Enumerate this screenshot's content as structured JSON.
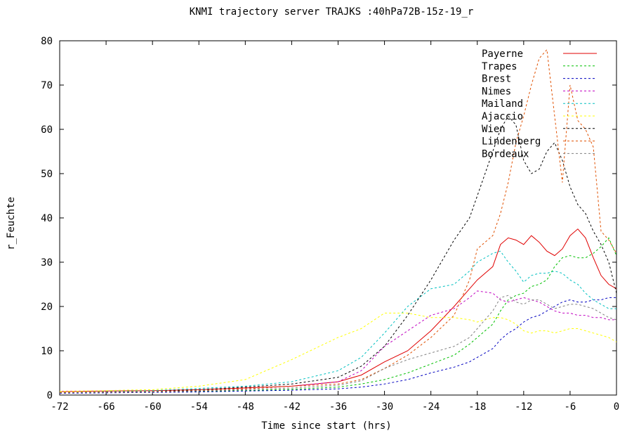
{
  "chart_data": {
    "type": "line",
    "title": "KNMI trajectory server TRAJKS :40hPa72B-15z-19_r",
    "xlabel": "Time since start (hrs)",
    "ylabel": "r_Feuchte",
    "xlim": [
      -72,
      0
    ],
    "ylim": [
      0,
      80
    ],
    "x_ticks": [
      -72,
      -66,
      -60,
      -54,
      -48,
      -42,
      -36,
      -30,
      -24,
      -18,
      -12,
      -6,
      0
    ],
    "y_ticks": [
      0,
      10,
      20,
      30,
      40,
      50,
      60,
      70,
      80
    ],
    "grid": false,
    "legend_position": "top-right",
    "x": [
      -72,
      -66,
      -60,
      -54,
      -48,
      -42,
      -36,
      -33,
      -30,
      -27,
      -24,
      -21,
      -19,
      -18,
      -16,
      -15,
      -14,
      -13,
      -12,
      -11,
      -10,
      -9,
      -8,
      -7,
      -6,
      -5,
      -4,
      -3,
      -2,
      -1,
      0
    ],
    "series": [
      {
        "name": "Payerne",
        "color": "#e00000",
        "dash": "",
        "values": [
          0.8,
          0.9,
          1,
          1.2,
          1.6,
          2,
          3,
          4.5,
          7.5,
          10,
          14.5,
          20,
          24,
          26,
          29,
          34,
          35.5,
          35,
          34,
          36,
          34.5,
          32.5,
          31.5,
          33,
          36,
          37.5,
          35.5,
          31,
          27,
          25,
          24
        ]
      },
      {
        "name": "Trapes",
        "color": "#00c000",
        "dash": "3,3",
        "values": [
          0.5,
          0.6,
          0.7,
          0.8,
          1,
          1.3,
          1.8,
          2.5,
          3.5,
          5,
          7,
          9,
          11.5,
          13,
          16,
          19,
          21.5,
          22.5,
          23,
          24.5,
          25,
          26,
          29,
          31,
          31.5,
          31,
          31,
          32,
          33.5,
          35.5,
          31.5
        ]
      },
      {
        "name": "Brest",
        "color": "#0000c0",
        "dash": "3,3",
        "values": [
          0.4,
          0.5,
          0.6,
          0.7,
          0.9,
          1.1,
          1.4,
          1.8,
          2.5,
          3.5,
          5,
          6.3,
          7.5,
          8.5,
          10.5,
          12.5,
          14,
          15,
          16.5,
          17.5,
          18,
          19,
          20,
          21,
          21.5,
          21,
          21,
          21.5,
          21.5,
          22,
          22
        ]
      },
      {
        "name": "Nimes",
        "color": "#c000c0",
        "dash": "3,3",
        "values": [
          0.6,
          0.7,
          0.8,
          1,
          1.4,
          2,
          3,
          5.5,
          11,
          14.5,
          18,
          19.5,
          22,
          23.5,
          23,
          21.5,
          21,
          21.5,
          22,
          21.5,
          21,
          20,
          19,
          18.5,
          18.5,
          18,
          18,
          17.5,
          17.5,
          17,
          17
        ]
      },
      {
        "name": "Mailand",
        "color": "#00c0c0",
        "dash": "3,3",
        "values": [
          0.6,
          0.8,
          1,
          1.5,
          2,
          3,
          5.5,
          8.5,
          14,
          20,
          24,
          25,
          28,
          30,
          32,
          32.5,
          30,
          28,
          25.5,
          27,
          27.5,
          27.5,
          28,
          27.5,
          26,
          25,
          23,
          21.5,
          20.5,
          19.5,
          19.5
        ]
      },
      {
        "name": "Ajaccio",
        "color": "#ffff00",
        "dash": "3,3",
        "values": [
          0.8,
          1,
          1.2,
          2,
          3.5,
          8,
          13,
          15,
          18.5,
          18.5,
          17.5,
          17.5,
          17,
          16.5,
          17.5,
          17.5,
          17,
          16,
          14.5,
          14,
          14.5,
          14.5,
          14,
          14.5,
          15,
          15,
          14.5,
          14,
          13.5,
          13,
          12
        ]
      },
      {
        "name": "Wien",
        "color": "#000000",
        "dash": "3,3",
        "values": [
          0.6,
          0.7,
          0.8,
          1.2,
          1.8,
          2.5,
          4,
          6.5,
          11,
          18,
          26,
          35,
          40,
          45,
          55,
          60,
          63,
          61,
          53,
          50,
          51,
          55,
          57,
          53,
          47,
          43,
          41,
          37,
          34,
          30,
          23
        ]
      },
      {
        "name": "Lindenberg",
        "color": "#e05000",
        "dash": "3,3",
        "values": [
          0.6,
          0.7,
          0.8,
          1,
          1.4,
          2,
          2.5,
          3.5,
          6,
          9,
          13,
          18,
          26,
          33,
          36,
          41,
          48,
          57,
          63,
          70,
          76,
          78,
          63,
          48,
          70,
          62,
          60,
          56,
          37,
          35,
          32
        ]
      },
      {
        "name": "Bordeaux",
        "color": "#808080",
        "dash": "3,3",
        "values": [
          0.5,
          0.6,
          0.7,
          0.9,
          1.2,
          1.6,
          2.2,
          3.2,
          6,
          8,
          9.5,
          11,
          13,
          15,
          19,
          22,
          22.5,
          21,
          20.5,
          21.5,
          21.5,
          20.5,
          19.5,
          20,
          20.5,
          20.5,
          20,
          19.5,
          18.5,
          17.5,
          17
        ]
      }
    ]
  }
}
